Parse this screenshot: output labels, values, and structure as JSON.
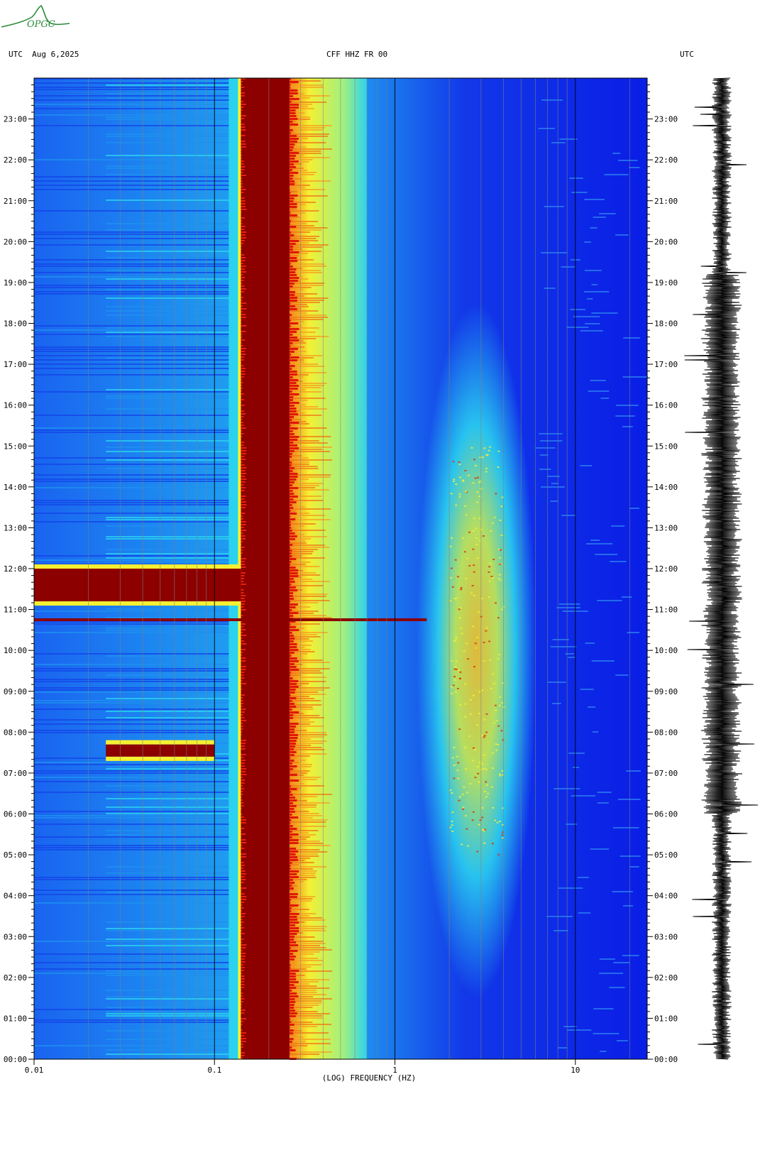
{
  "header": {
    "left": "UTC  Aug 6,2025",
    "center": "CFF HHZ FR 00",
    "right": "UTC"
  },
  "logo": {
    "text": "OPGC",
    "color": "#2a8a3a"
  },
  "colors": {
    "background": "#0a1ee6",
    "low_band": "#1a5cf0",
    "mid_cyan": "#2ad2f0",
    "yellow": "#f5f032",
    "orange": "#f07818",
    "red_band": "#8c0000",
    "grid": "#808080"
  },
  "chart_data": {
    "type": "heatmap",
    "title": "CFF HHZ FR 00",
    "xlabel": "(LOG) FREQUENCY (HZ)",
    "ylabel": "UTC",
    "x_scale": "log",
    "xlim": [
      0.01,
      25
    ],
    "x_ticks": [
      {
        "value": 0.01,
        "label": "0.01"
      },
      {
        "value": 0.1,
        "label": "0.1"
      },
      {
        "value": 1,
        "label": "1"
      },
      {
        "value": 10,
        "label": "10"
      }
    ],
    "y_ticks": [
      "00:00",
      "01:00",
      "02:00",
      "03:00",
      "04:00",
      "05:00",
      "06:00",
      "07:00",
      "08:00",
      "09:00",
      "10:00",
      "11:00",
      "12:00",
      "13:00",
      "14:00",
      "15:00",
      "16:00",
      "17:00",
      "18:00",
      "19:00",
      "20:00",
      "21:00",
      "22:00",
      "23:00"
    ],
    "ylim_hours": [
      0,
      24
    ],
    "bands": [
      {
        "name": "microseism",
        "f_low": 0.14,
        "f_high": 0.26,
        "level": "max"
      },
      {
        "name": "secondary",
        "f_low": 0.26,
        "f_high": 0.7,
        "level": "high"
      },
      {
        "name": "cultural",
        "f_low": 2.0,
        "f_high": 4.0,
        "hours": [
          5,
          15
        ],
        "level": "high"
      }
    ],
    "events": [
      {
        "name": "quake",
        "hour": 10.75,
        "f_low": 0.01,
        "f_high": 1.5
      },
      {
        "name": "quake-long-period",
        "hour_start": 11.2,
        "hour_end": 12.0,
        "f_low": 0.01,
        "f_high": 0.14
      },
      {
        "name": "quake-2",
        "hour_start": 7.4,
        "hour_end": 7.7,
        "f_low": 0.025,
        "f_high": 0.1
      }
    ],
    "grid": true,
    "seismogram": true
  }
}
